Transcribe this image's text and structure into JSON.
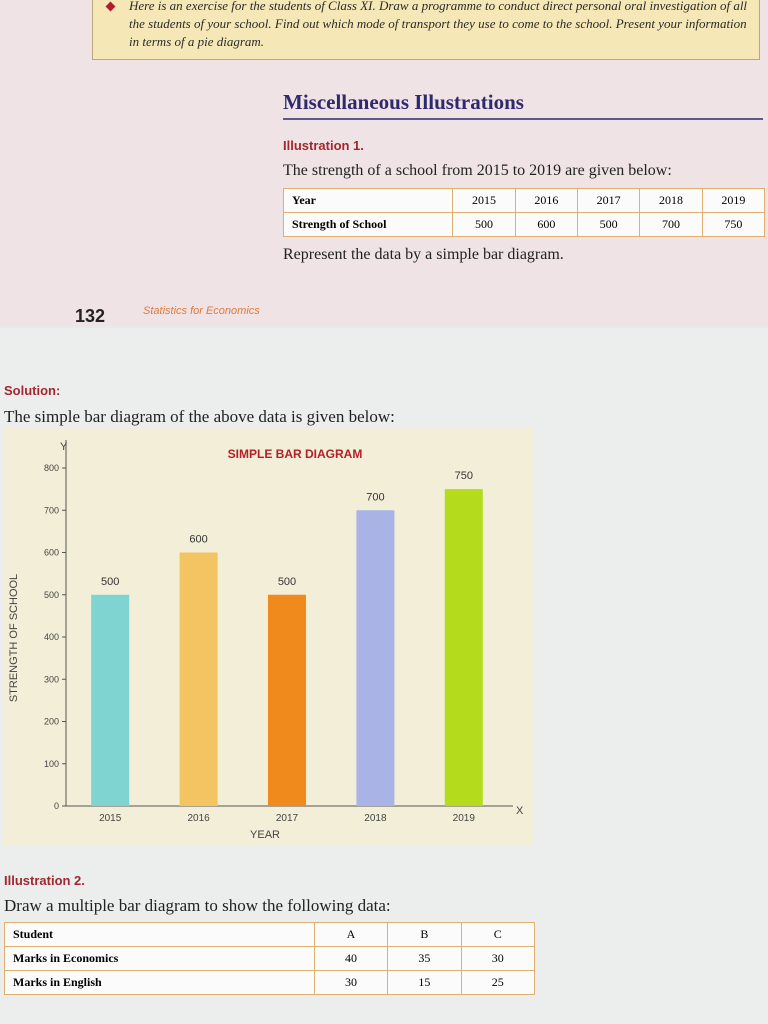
{
  "exercise": "Here is an exercise for the students of Class XI. Draw a programme to conduct direct personal oral investigation of all the students of your school. Find out which mode of transport they use to come to the school. Present your information in terms of a pie diagram.",
  "section_title": "Miscellaneous Illustrations",
  "illustration_1": {
    "label": "Illustration 1.",
    "intro": "The strength of a school from 2015 to 2019 are given below:",
    "table": {
      "rows": [
        [
          "Year",
          "2015",
          "2016",
          "2017",
          "2018",
          "2019"
        ],
        [
          "Strength of School",
          "500",
          "600",
          "500",
          "700",
          "750"
        ]
      ]
    },
    "task": "Represent the data by a simple bar diagram."
  },
  "footer": {
    "page_number": "132",
    "book": "Statistics for Economics"
  },
  "solution": {
    "label": "Solution:",
    "text": "The simple bar diagram of the above data is given below:"
  },
  "chart_data": {
    "type": "bar",
    "title": "SIMPLE BAR DIAGRAM",
    "x_label": "YEAR",
    "y_label": "STRENGTH OF SCHOOL",
    "x_axis_letter": "X",
    "y_axis_letter": "Y",
    "categories": [
      "2015",
      "2016",
      "2017",
      "2018",
      "2019"
    ],
    "values": [
      500,
      600,
      500,
      700,
      750
    ],
    "colors": [
      "#7fd3d0",
      "#f3c462",
      "#f08a1c",
      "#a9b3e6",
      "#b5dc1c"
    ],
    "ylim": [
      0,
      800
    ],
    "yticks": [
      0,
      100,
      200,
      300,
      400,
      500,
      600,
      700,
      800
    ]
  },
  "illustration_2": {
    "label": "Illustration 2.",
    "intro": "Draw a multiple bar diagram to show the following data:",
    "table": {
      "rows": [
        [
          "Student",
          "A",
          "B",
          "C"
        ],
        [
          "Marks in Economics",
          "40",
          "35",
          "30"
        ],
        [
          "Marks in English",
          "30",
          "15",
          "25"
        ]
      ]
    }
  }
}
